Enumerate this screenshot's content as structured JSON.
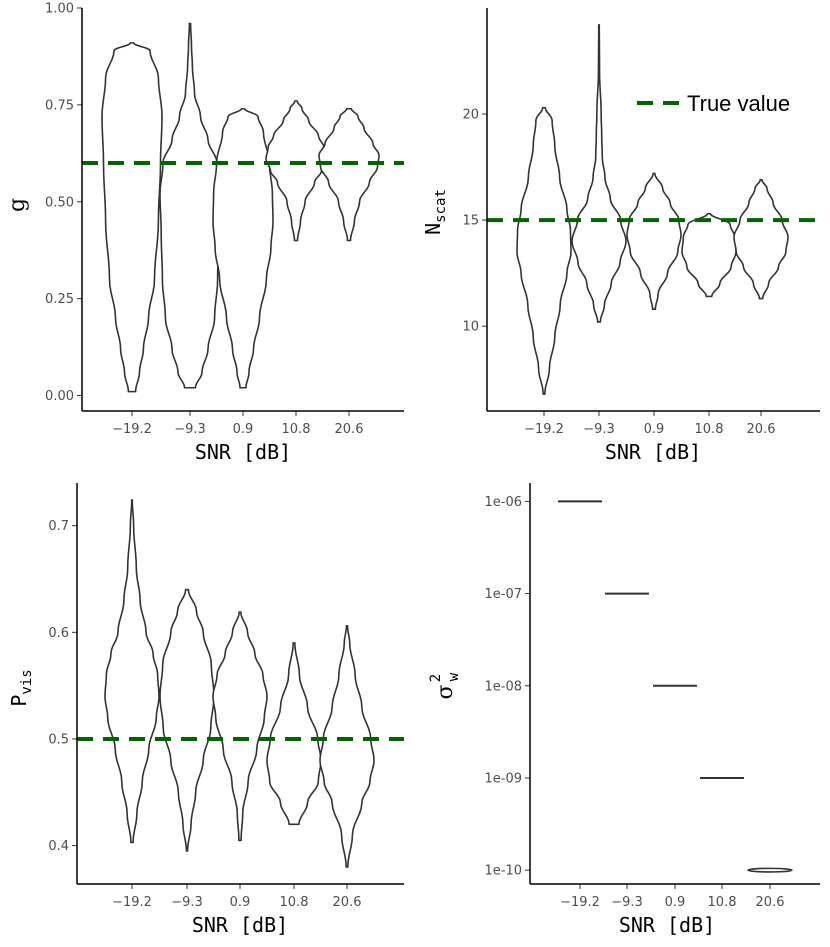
{
  "colors": {
    "true_value": "#006400",
    "violin_stroke": "#333333"
  },
  "legend": {
    "label": "True value"
  },
  "chart_data": [
    {
      "id": "g",
      "type": "violin",
      "xlabel": "SNR [dB]",
      "ylabel": "g",
      "categories": [
        "−19.2",
        "−9.3",
        "0.9",
        "10.8",
        "20.6"
      ],
      "ylim": [
        -0.04,
        1.0
      ],
      "yticks": [
        0.0,
        0.25,
        0.5,
        0.75,
        1.0
      ],
      "yticklabels": [
        "0.00",
        "0.25",
        "0.50",
        "0.75",
        "1.00"
      ],
      "true_value": 0.6,
      "distributions": [
        {
          "min": 0.01,
          "max": 0.91,
          "profile": [
            [
              0.01,
              0.12
            ],
            [
              0.06,
              0.25
            ],
            [
              0.12,
              0.38
            ],
            [
              0.2,
              0.55
            ],
            [
              0.3,
              0.75
            ],
            [
              0.45,
              0.88
            ],
            [
              0.6,
              0.95
            ],
            [
              0.72,
              1.0
            ],
            [
              0.82,
              0.88
            ],
            [
              0.89,
              0.6
            ],
            [
              0.91,
              0.05
            ]
          ]
        },
        {
          "min": 0.02,
          "max": 0.96,
          "profile": [
            [
              0.02,
              0.18
            ],
            [
              0.06,
              0.4
            ],
            [
              0.12,
              0.6
            ],
            [
              0.2,
              0.82
            ],
            [
              0.3,
              0.92
            ],
            [
              0.42,
              0.96
            ],
            [
              0.52,
              1.0
            ],
            [
              0.6,
              0.9
            ],
            [
              0.66,
              0.6
            ],
            [
              0.72,
              0.35
            ],
            [
              0.78,
              0.15
            ],
            [
              0.85,
              0.08
            ],
            [
              0.9,
              0.05
            ],
            [
              0.96,
              0.02
            ]
          ]
        },
        {
          "min": 0.02,
          "max": 0.74,
          "profile": [
            [
              0.02,
              0.1
            ],
            [
              0.06,
              0.2
            ],
            [
              0.12,
              0.35
            ],
            [
              0.2,
              0.55
            ],
            [
              0.3,
              0.78
            ],
            [
              0.38,
              0.93
            ],
            [
              0.45,
              1.0
            ],
            [
              0.52,
              0.98
            ],
            [
              0.6,
              0.88
            ],
            [
              0.68,
              0.68
            ],
            [
              0.72,
              0.5
            ],
            [
              0.74,
              0.05
            ]
          ]
        },
        {
          "min": 0.4,
          "max": 0.76,
          "profile": [
            [
              0.4,
              0.05
            ],
            [
              0.45,
              0.15
            ],
            [
              0.5,
              0.3
            ],
            [
              0.55,
              0.62
            ],
            [
              0.58,
              0.85
            ],
            [
              0.61,
              1.0
            ],
            [
              0.64,
              0.93
            ],
            [
              0.67,
              0.75
            ],
            [
              0.71,
              0.42
            ],
            [
              0.74,
              0.2
            ],
            [
              0.76,
              0.04
            ]
          ]
        },
        {
          "min": 0.4,
          "max": 0.74,
          "profile": [
            [
              0.4,
              0.05
            ],
            [
              0.45,
              0.18
            ],
            [
              0.5,
              0.35
            ],
            [
              0.55,
              0.68
            ],
            [
              0.59,
              0.95
            ],
            [
              0.62,
              1.0
            ],
            [
              0.65,
              0.8
            ],
            [
              0.69,
              0.5
            ],
            [
              0.72,
              0.3
            ],
            [
              0.74,
              0.08
            ]
          ]
        }
      ]
    },
    {
      "id": "nscat",
      "type": "violin",
      "xlabel": "SNR [dB]",
      "ylabel": "N",
      "ylabel_sub": "scat",
      "categories": [
        "−19.2",
        "−9.3",
        "0.9",
        "10.8",
        "20.6"
      ],
      "ylim": [
        6.0,
        25.0
      ],
      "yticks": [
        10,
        15,
        20
      ],
      "yticklabels": [
        "10",
        "15",
        "20"
      ],
      "true_value": 15,
      "distributions": [
        {
          "min": 6.8,
          "max": 20.3,
          "profile": [
            [
              6.8,
              0.03
            ],
            [
              8.0,
              0.2
            ],
            [
              9.5,
              0.4
            ],
            [
              11.0,
              0.6
            ],
            [
              12.5,
              0.85
            ],
            [
              13.5,
              1.0
            ],
            [
              14.5,
              0.98
            ],
            [
              15.5,
              0.85
            ],
            [
              17.0,
              0.58
            ],
            [
              18.5,
              0.4
            ],
            [
              19.7,
              0.3
            ],
            [
              20.3,
              0.05
            ]
          ]
        },
        {
          "min": 10.2,
          "max": 24.2,
          "profile": [
            [
              10.2,
              0.05
            ],
            [
              11.0,
              0.2
            ],
            [
              12.0,
              0.45
            ],
            [
              13.0,
              0.78
            ],
            [
              14.0,
              1.0
            ],
            [
              15.0,
              0.8
            ],
            [
              16.0,
              0.42
            ],
            [
              17.0,
              0.22
            ],
            [
              18.0,
              0.12
            ],
            [
              19.0,
              0.1
            ],
            [
              20.0,
              0.08
            ],
            [
              22.0,
              0.02
            ],
            [
              24.2,
              0.01
            ]
          ]
        },
        {
          "min": 10.8,
          "max": 17.2,
          "profile": [
            [
              10.8,
              0.05
            ],
            [
              11.5,
              0.15
            ],
            [
              12.5,
              0.5
            ],
            [
              13.5,
              0.88
            ],
            [
              14.3,
              1.0
            ],
            [
              15.0,
              0.92
            ],
            [
              15.8,
              0.6
            ],
            [
              16.5,
              0.32
            ],
            [
              17.2,
              0.03
            ]
          ]
        },
        {
          "min": 11.4,
          "max": 15.3,
          "profile": [
            [
              11.4,
              0.1
            ],
            [
              12.0,
              0.4
            ],
            [
              12.8,
              0.82
            ],
            [
              13.5,
              1.0
            ],
            [
              14.2,
              0.95
            ],
            [
              14.8,
              0.78
            ],
            [
              15.3,
              0.05
            ]
          ]
        },
        {
          "min": 11.3,
          "max": 16.9,
          "profile": [
            [
              11.3,
              0.06
            ],
            [
              12.0,
              0.28
            ],
            [
              12.8,
              0.65
            ],
            [
              13.5,
              0.92
            ],
            [
              14.2,
              1.0
            ],
            [
              15.0,
              0.78
            ],
            [
              15.8,
              0.45
            ],
            [
              16.5,
              0.22
            ],
            [
              16.9,
              0.03
            ]
          ]
        }
      ]
    },
    {
      "id": "pvis",
      "type": "violin",
      "xlabel": "SNR [dB]",
      "ylabel": "P",
      "ylabel_sub": "vis",
      "categories": [
        "−19.2",
        "−9.3",
        "0.9",
        "10.8",
        "20.6"
      ],
      "ylim": [
        0.364,
        0.74
      ],
      "yticks": [
        0.4,
        0.5,
        0.6,
        0.7
      ],
      "yticklabels": [
        "0.4",
        "0.5",
        "0.6",
        "0.7"
      ],
      "true_value": 0.5,
      "distributions": [
        {
          "min": 0.403,
          "max": 0.724,
          "profile": [
            [
              0.403,
              0.04
            ],
            [
              0.43,
              0.18
            ],
            [
              0.46,
              0.38
            ],
            [
              0.49,
              0.62
            ],
            [
              0.52,
              0.9
            ],
            [
              0.54,
              1.0
            ],
            [
              0.56,
              0.95
            ],
            [
              0.58,
              0.78
            ],
            [
              0.6,
              0.52
            ],
            [
              0.63,
              0.3
            ],
            [
              0.66,
              0.16
            ],
            [
              0.7,
              0.06
            ],
            [
              0.724,
              0.01
            ]
          ]
        },
        {
          "min": 0.395,
          "max": 0.64,
          "profile": [
            [
              0.395,
              0.02
            ],
            [
              0.42,
              0.15
            ],
            [
              0.45,
              0.32
            ],
            [
              0.48,
              0.6
            ],
            [
              0.51,
              0.88
            ],
            [
              0.54,
              1.0
            ],
            [
              0.57,
              0.9
            ],
            [
              0.6,
              0.6
            ],
            [
              0.62,
              0.35
            ],
            [
              0.64,
              0.05
            ]
          ]
        },
        {
          "min": 0.405,
          "max": 0.619,
          "profile": [
            [
              0.405,
              0.04
            ],
            [
              0.43,
              0.1
            ],
            [
              0.46,
              0.3
            ],
            [
              0.49,
              0.62
            ],
            [
              0.52,
              0.9
            ],
            [
              0.54,
              1.0
            ],
            [
              0.56,
              0.85
            ],
            [
              0.58,
              0.55
            ],
            [
              0.6,
              0.28
            ],
            [
              0.619,
              0.03
            ]
          ]
        },
        {
          "min": 0.42,
          "max": 0.59,
          "profile": [
            [
              0.42,
              0.18
            ],
            [
              0.44,
              0.5
            ],
            [
              0.46,
              0.9
            ],
            [
              0.48,
              1.0
            ],
            [
              0.5,
              0.88
            ],
            [
              0.53,
              0.5
            ],
            [
              0.56,
              0.2
            ],
            [
              0.59,
              0.03
            ]
          ]
        },
        {
          "min": 0.38,
          "max": 0.606,
          "profile": [
            [
              0.38,
              0.03
            ],
            [
              0.41,
              0.2
            ],
            [
              0.44,
              0.55
            ],
            [
              0.46,
              0.85
            ],
            [
              0.48,
              1.0
            ],
            [
              0.5,
              0.88
            ],
            [
              0.53,
              0.55
            ],
            [
              0.56,
              0.3
            ],
            [
              0.59,
              0.1
            ],
            [
              0.606,
              0.02
            ]
          ]
        }
      ]
    },
    {
      "id": "sigma",
      "type": "violin",
      "xlabel": "SNR [dB]",
      "ylabel": "σ",
      "ylabel_sup": "2",
      "ylabel_sub": "w",
      "yscale": "log",
      "categories": [
        "−19.2",
        "−9.3",
        "0.9",
        "10.8",
        "20.6"
      ],
      "ylim_exp": [
        -10.15,
        -5.8
      ],
      "yticks_exp": [
        -10,
        -9,
        -8,
        -7,
        -6
      ],
      "yticklabels": [
        "1e-10",
        "1e-09",
        "1e-08",
        "1e-07",
        "1e-06"
      ],
      "values": [
        1e-06,
        1e-07,
        1e-08,
        1e-09,
        1e-10
      ]
    }
  ]
}
